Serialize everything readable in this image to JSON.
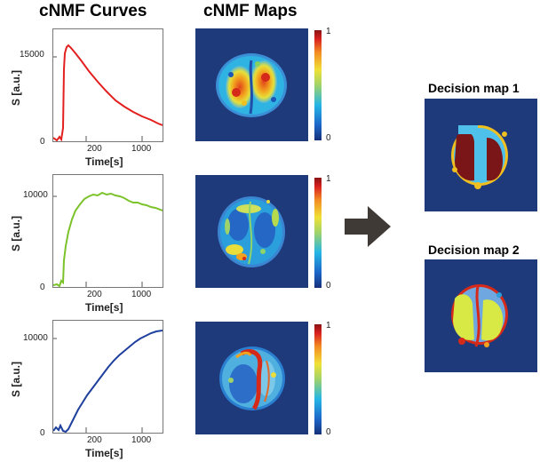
{
  "headings": {
    "curves": "cNMF Curves",
    "maps": "cNMF Maps"
  },
  "curves": [
    {
      "ylabel": "S [a.u.]",
      "xlabel": "Time[s]",
      "ytick_top": "15000",
      "ytick_bottom": "0",
      "xticks": [
        "200",
        "1000"
      ],
      "color": "#e32020"
    },
    {
      "ylabel": "S [a.u.]",
      "xlabel": "Time[s]",
      "ytick_top": "10000",
      "ytick_bottom": "0",
      "xticks": [
        "200",
        "1000"
      ],
      "color": "#7cc22b"
    },
    {
      "ylabel": "S [a.u.]",
      "xlabel": "Time[s]",
      "ytick_top": "10000",
      "ytick_bottom": "0",
      "xticks": [
        "200",
        "1000"
      ],
      "color": "#1f3f9e"
    }
  ],
  "colorbar": {
    "top": "1",
    "bottom": "0"
  },
  "decision_maps": {
    "map1_title": "Decision map 1",
    "map2_title": "Decision map 2"
  },
  "colors": {
    "map_background": "#1f3a7a",
    "arrow": "#3f3a36"
  }
}
